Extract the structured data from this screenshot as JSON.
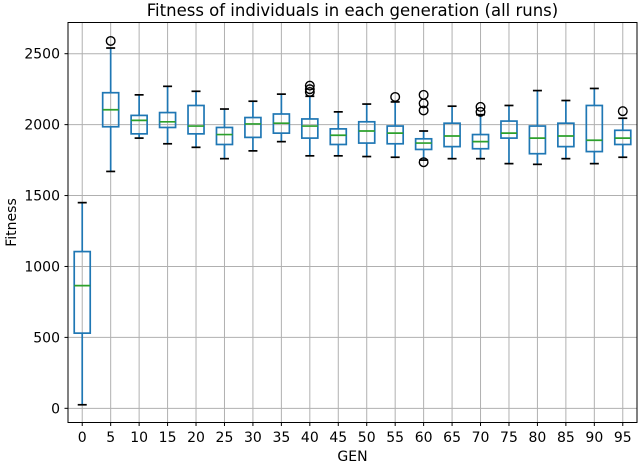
{
  "chart_data": {
    "type": "boxplot",
    "title": "Fitness of individuals in each generation (all runs)",
    "xlabel": "GEN",
    "ylabel": "Fitness",
    "categories": [
      0,
      5,
      10,
      15,
      20,
      25,
      30,
      35,
      40,
      45,
      50,
      55,
      60,
      65,
      70,
      75,
      80,
      85,
      90,
      95
    ],
    "x_tick_labels": [
      "0",
      "5",
      "10",
      "15",
      "20",
      "25",
      "30",
      "35",
      "40",
      "45",
      "50",
      "55",
      "60",
      "65",
      "70",
      "75",
      "80",
      "85",
      "90",
      "95"
    ],
    "yticks": [
      0,
      500,
      1000,
      1500,
      2000,
      2500
    ],
    "ytick_labels": [
      "0",
      "500",
      "1000",
      "1500",
      "2000",
      "2500"
    ],
    "ylim": [
      -100,
      2720
    ],
    "grid": true,
    "legend": false,
    "colors": {
      "box": "#1f77b4",
      "whisker": "#1f77b4",
      "median": "#2ca02c",
      "cap": "#000000",
      "outlier": "#000000",
      "grid": "#b0b0b0",
      "spine": "#000000",
      "background": "#ffffff"
    },
    "series": [
      {
        "gen": "0",
        "whislo": 25,
        "q1": 530,
        "med": 865,
        "q3": 1105,
        "whishi": 1450,
        "outliers": []
      },
      {
        "gen": "5",
        "whislo": 1670,
        "q1": 1985,
        "med": 2105,
        "q3": 2225,
        "whishi": 2540,
        "outliers": [
          2590
        ]
      },
      {
        "gen": "10",
        "whislo": 1905,
        "q1": 1935,
        "med": 2030,
        "q3": 2065,
        "whishi": 2210,
        "outliers": []
      },
      {
        "gen": "15",
        "whislo": 1865,
        "q1": 1980,
        "med": 2020,
        "q3": 2085,
        "whishi": 2270,
        "outliers": []
      },
      {
        "gen": "20",
        "whislo": 1840,
        "q1": 1935,
        "med": 1990,
        "q3": 2135,
        "whishi": 2235,
        "outliers": []
      },
      {
        "gen": "25",
        "whislo": 1760,
        "q1": 1860,
        "med": 1930,
        "q3": 1980,
        "whishi": 2110,
        "outliers": []
      },
      {
        "gen": "30",
        "whislo": 1815,
        "q1": 1910,
        "med": 2005,
        "q3": 2050,
        "whishi": 2165,
        "outliers": []
      },
      {
        "gen": "35",
        "whislo": 1880,
        "q1": 1940,
        "med": 2010,
        "q3": 2075,
        "whishi": 2215,
        "outliers": []
      },
      {
        "gen": "40",
        "whislo": 1780,
        "q1": 1905,
        "med": 1990,
        "q3": 2040,
        "whishi": 2200,
        "outliers": [
          2230,
          2250,
          2275
        ]
      },
      {
        "gen": "45",
        "whislo": 1780,
        "q1": 1860,
        "med": 1925,
        "q3": 1970,
        "whishi": 2090,
        "outliers": []
      },
      {
        "gen": "50",
        "whislo": 1775,
        "q1": 1870,
        "med": 1955,
        "q3": 2020,
        "whishi": 2145,
        "outliers": []
      },
      {
        "gen": "55",
        "whislo": 1770,
        "q1": 1865,
        "med": 1940,
        "q3": 1990,
        "whishi": 2160,
        "outliers": [
          2195
        ]
      },
      {
        "gen": "60",
        "whislo": 1750,
        "q1": 1825,
        "med": 1870,
        "q3": 1900,
        "whishi": 1955,
        "outliers": [
          1735,
          2100,
          2150,
          2210
        ]
      },
      {
        "gen": "65",
        "whislo": 1760,
        "q1": 1845,
        "med": 1920,
        "q3": 2010,
        "whishi": 2130,
        "outliers": []
      },
      {
        "gen": "70",
        "whislo": 1760,
        "q1": 1830,
        "med": 1880,
        "q3": 1930,
        "whishi": 2070,
        "outliers": [
          2090,
          2125
        ]
      },
      {
        "gen": "75",
        "whislo": 1725,
        "q1": 1905,
        "med": 1940,
        "q3": 2025,
        "whishi": 2135,
        "outliers": []
      },
      {
        "gen": "80",
        "whislo": 1720,
        "q1": 1795,
        "med": 1905,
        "q3": 1990,
        "whishi": 2240,
        "outliers": []
      },
      {
        "gen": "85",
        "whislo": 1760,
        "q1": 1845,
        "med": 1920,
        "q3": 2010,
        "whishi": 2170,
        "outliers": []
      },
      {
        "gen": "90",
        "whislo": 1725,
        "q1": 1810,
        "med": 1890,
        "q3": 2135,
        "whishi": 2255,
        "outliers": []
      },
      {
        "gen": "95",
        "whislo": 1770,
        "q1": 1860,
        "med": 1905,
        "q3": 1960,
        "whishi": 2045,
        "outliers": [
          2095
        ]
      }
    ]
  }
}
